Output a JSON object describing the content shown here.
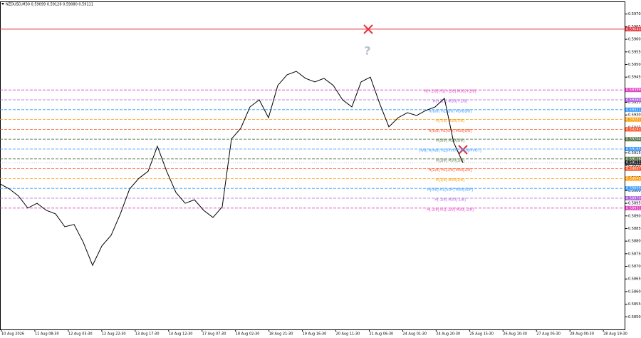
{
  "chart_data": {
    "type": "line",
    "title": "NZDUSD,M30  0.59099 0.59126 0.59080 0.59111",
    "ylim": [
      0.5845,
      0.5975
    ],
    "yticks": [
      {
        "value": 0.585,
        "label": "0.58500"
      },
      {
        "value": 0.5855,
        "label": "0.58550"
      },
      {
        "value": 0.586,
        "label": "0.58600"
      },
      {
        "value": 0.5865,
        "label": "0.58650"
      },
      {
        "value": 0.587,
        "label": "0.58700"
      },
      {
        "value": 0.5875,
        "label": "0.58750"
      },
      {
        "value": 0.588,
        "label": "0.58800"
      },
      {
        "value": 0.5885,
        "label": "0.58850"
      },
      {
        "value": 0.589,
        "label": "0.58900"
      },
      {
        "value": 0.5895,
        "label": "0.58950"
      },
      {
        "value": 0.59,
        "label": "0.59000"
      },
      {
        "value": 0.5905,
        "label": "0.59050"
      },
      {
        "value": 0.591,
        "label": "0.59100"
      },
      {
        "value": 0.5915,
        "label": "0.59150"
      },
      {
        "value": 0.592,
        "label": "0.59200"
      },
      {
        "value": 0.5925,
        "label": "0.59250"
      },
      {
        "value": 0.593,
        "label": "0.59300"
      },
      {
        "value": 0.5935,
        "label": "0.59350"
      },
      {
        "value": 0.594,
        "label": "0.59400"
      },
      {
        "value": 0.5945,
        "label": "0.59450"
      },
      {
        "value": 0.595,
        "label": "0.59500"
      },
      {
        "value": 0.5955,
        "label": "0.59550"
      },
      {
        "value": 0.596,
        "label": "0.59600"
      },
      {
        "value": 0.5965,
        "label": "0.59650"
      },
      {
        "value": 0.597,
        "label": "0.59700"
      }
    ],
    "x_labels": [
      "10 Aug 2026",
      "11 Aug 08:30",
      "12 Aug 03:30",
      "12 Aug 22:30",
      "13 Aug 17:30",
      "14 Aug 12:30",
      "17 Aug 07:30",
      "18 Aug 02:30",
      "18 Aug 21:30",
      "19 Aug 16:30",
      "20 Aug 11:30",
      "21 Aug 06:30",
      "24 Aug 01:30",
      "24 Aug 20:30",
      "25 Aug 15:30",
      "26 Aug 10:30",
      "27 Aug 05:30",
      "28 Aug 00:30",
      "28 Aug 19:30"
    ],
    "series": [
      {
        "color": "#000000",
        "values": [
          0.59027,
          0.59007,
          0.58979,
          0.58931,
          0.5895,
          0.58922,
          0.58908,
          0.58857,
          0.58866,
          0.58795,
          0.58704,
          0.58781,
          0.58823,
          0.58908,
          0.59007,
          0.59049,
          0.59077,
          0.59176,
          0.59077,
          0.58993,
          0.5895,
          0.58964,
          0.58922,
          0.58894,
          0.58936,
          0.59205,
          0.59247,
          0.59332,
          0.5936,
          0.59289,
          0.59417,
          0.59459,
          0.59473,
          0.59445,
          0.59431,
          0.59445,
          0.59417,
          0.5936,
          0.59332,
          0.59431,
          0.5945,
          0.59346,
          0.59253,
          0.59289,
          0.59309,
          0.59298,
          0.59318,
          0.59332,
          0.59366,
          0.59191,
          0.59111
        ]
      }
    ],
    "alert_line": {
      "value": 0.5964,
      "label": "0.59640",
      "color": "#e8303a"
    },
    "levels": [
      {
        "text": "H[+2/8] H1[+2/8] M30[+2/8]",
        "value": 0.59399,
        "label": "0.59399",
        "color": "#e040c0"
      },
      {
        "text": "H[+1/8] M30[+1/8]",
        "value": 0.5936,
        "label": "0.59360",
        "color": "#b060e0"
      },
      {
        "text": "H[8/8] H1[8/8] M30[8/8]",
        "value": 0.59321,
        "label": "0.59321",
        "color": "#3399ff"
      },
      {
        "text": "H[7/8] M30[7/8]",
        "value": 0.59282,
        "label": "0.59282",
        "color": "#ff9900"
      },
      {
        "text": "H[6/8] H1[6/8] M30[6/8]",
        "value": 0.59243,
        "label": "0.59243",
        "color": "#ff5020"
      },
      {
        "text": "H[5/8] M30[5/8]",
        "value": 0.59204,
        "label": "0.59204",
        "color": "#557744"
      },
      {
        "text": "[4/8] H[4/8] H1[PIVOT] M30[PIVOT]",
        "value": 0.59165,
        "label": "0.59165",
        "color": "#3399ff"
      },
      {
        "text": "H[3/8] M30[3/8]",
        "value": 0.59126,
        "label": "0.59126",
        "color": "#557744"
      },
      {
        "text": "H[2/8] H1[2/8] M30[2/8]",
        "value": 0.59087,
        "label": "0.59087",
        "color": "#ff5020"
      },
      {
        "text": "H[1/8] M30[1/8]",
        "value": 0.59048,
        "label": "0.59048",
        "color": "#ff9900"
      },
      {
        "text": "H[0/8] H1[SUP] M30[SUP]",
        "value": 0.59009,
        "label": "0.59009",
        "color": "#3399ff"
      },
      {
        "text": "H[-1/8] M30[-1/8]",
        "value": 0.5897,
        "label": "0.58970",
        "color": "#b060e0"
      },
      {
        "text": "H[-2/8] H1[-2/8] M30[-2/8]",
        "value": 0.58931,
        "label": "0.58931",
        "color": "#e040c0"
      }
    ]
  }
}
